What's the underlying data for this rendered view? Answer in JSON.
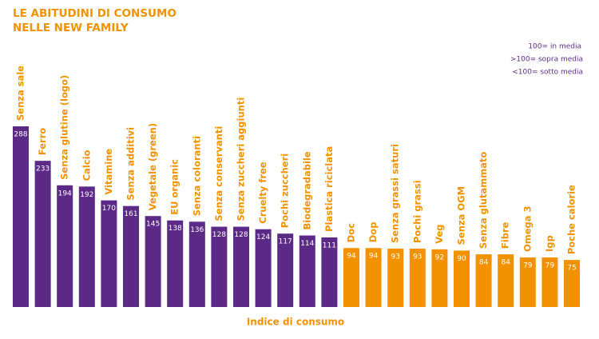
{
  "chart_data": {
    "type": "bar",
    "title": [
      "LE ABITUDINI DI CONSUMO",
      "NELLE NEW FAMILY"
    ],
    "x_label": "Indice di consumo",
    "annotations": [
      "100= in media",
      ">100= sopra media",
      "<100= sotto media"
    ],
    "categories": [
      "Senza sale",
      "Ferro",
      "Senza glutine (logo)",
      "Calcio",
      "Vitamine",
      "Senza additivi",
      "Vegetale (green)",
      "EU organic",
      "Senza coloranti",
      "Senza conservanti",
      "Senza zuccheri aggiunti",
      "Cruelty free",
      "Pochi zuccheri",
      "Biodegradabile",
      "Plastica riciclata",
      "Doc",
      "Dop",
      "Senza grassi saturi",
      "Pochi grassi",
      "Veg",
      "Senza OGM",
      "Senza glutammato",
      "Fibre",
      "Omega 3",
      "Igp",
      "Poche calorie"
    ],
    "values": [
      288,
      233,
      194,
      192,
      170,
      161,
      145,
      138,
      136,
      128,
      128,
      124,
      117,
      114,
      111,
      94,
      94,
      93,
      93,
      92,
      90,
      84,
      84,
      79,
      79,
      75
    ],
    "colors": [
      "#5b2a86",
      "#5b2a86",
      "#5b2a86",
      "#5b2a86",
      "#5b2a86",
      "#5b2a86",
      "#5b2a86",
      "#5b2a86",
      "#5b2a86",
      "#5b2a86",
      "#5b2a86",
      "#5b2a86",
      "#5b2a86",
      "#5b2a86",
      "#5b2a86",
      "#f39200",
      "#f39200",
      "#f39200",
      "#f39200",
      "#f39200",
      "#f39200",
      "#f39200",
      "#f39200",
      "#f39200",
      "#f39200",
      "#f39200"
    ]
  }
}
